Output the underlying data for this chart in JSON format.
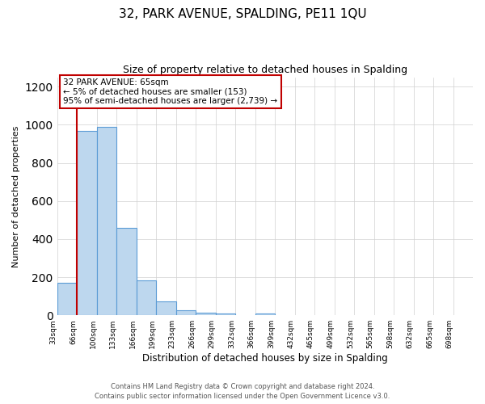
{
  "title": "32, PARK AVENUE, SPALDING, PE11 1QU",
  "subtitle": "Size of property relative to detached houses in Spalding",
  "xlabel": "Distribution of detached houses by size in Spalding",
  "ylabel": "Number of detached properties",
  "bin_labels": [
    "33sqm",
    "66sqm",
    "100sqm",
    "133sqm",
    "166sqm",
    "199sqm",
    "233sqm",
    "266sqm",
    "299sqm",
    "332sqm",
    "366sqm",
    "399sqm",
    "432sqm",
    "465sqm",
    "499sqm",
    "532sqm",
    "565sqm",
    "598sqm",
    "632sqm",
    "665sqm",
    "698sqm"
  ],
  "bar_values": [
    170,
    970,
    990,
    460,
    185,
    75,
    25,
    15,
    10,
    0,
    10,
    0,
    0,
    0,
    0,
    0,
    0,
    0,
    0,
    0,
    0
  ],
  "bar_color": "#bdd7ee",
  "bar_edge_color": "#5b9bd5",
  "property_line_x": 1.0,
  "annotation_title": "32 PARK AVENUE: 65sqm",
  "annotation_line1": "← 5% of detached houses are smaller (153)",
  "annotation_line2": "95% of semi-detached houses are larger (2,739) →",
  "annotation_box_color": "#ffffff",
  "annotation_box_edge_color": "#c00000",
  "property_line_color": "#c00000",
  "ylim": [
    0,
    1250
  ],
  "yticks": [
    0,
    200,
    400,
    600,
    800,
    1000,
    1200
  ],
  "footer1": "Contains HM Land Registry data © Crown copyright and database right 2024.",
  "footer2": "Contains public sector information licensed under the Open Government Licence v3.0."
}
